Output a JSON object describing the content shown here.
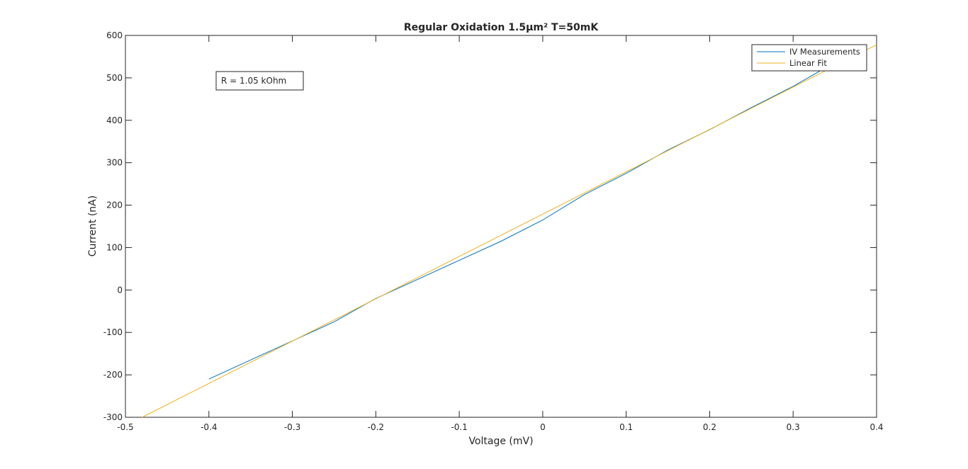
{
  "chart_data": {
    "type": "line",
    "title": "Regular Oxidation 1.5µm² T=50mK",
    "xlabel": "Voltage (mV)",
    "ylabel": "Current (nA)",
    "xlim": [
      -0.5,
      0.4
    ],
    "ylim": [
      -300,
      600
    ],
    "xticks": [
      -0.5,
      -0.4,
      -0.3,
      -0.2,
      -0.1,
      0,
      0.1,
      0.2,
      0.3,
      0.4
    ],
    "xtick_labels": [
      "-0.5",
      "-0.4",
      "-0.3",
      "-0.2",
      "-0.1",
      "0",
      "0.1",
      "0.2",
      "0.3",
      "0.4"
    ],
    "yticks": [
      -300,
      -200,
      -100,
      0,
      100,
      200,
      300,
      400,
      500,
      600
    ],
    "ytick_labels": [
      "-300",
      "-200",
      "-100",
      "0",
      "100",
      "200",
      "300",
      "400",
      "500",
      "600"
    ],
    "grid": false,
    "legend_position": "top-right",
    "annotation": "R = 1.05 kOhm",
    "series": [
      {
        "name": "IV Measurements",
        "color": "#0072BD",
        "x": [
          -0.4,
          -0.35,
          -0.3,
          -0.25,
          -0.2,
          -0.15,
          -0.1,
          -0.05,
          0.0,
          0.05,
          0.1,
          0.15,
          0.2,
          0.25,
          0.3,
          0.34
        ],
        "y": [
          -210,
          -165,
          -120,
          -75,
          -20,
          25,
          70,
          115,
          165,
          225,
          275,
          330,
          378,
          430,
          480,
          525
        ]
      },
      {
        "name": "Linear Fit",
        "color": "#EDB120",
        "x": [
          -0.48,
          0.4
        ],
        "y": [
          -300,
          578
        ]
      }
    ]
  }
}
